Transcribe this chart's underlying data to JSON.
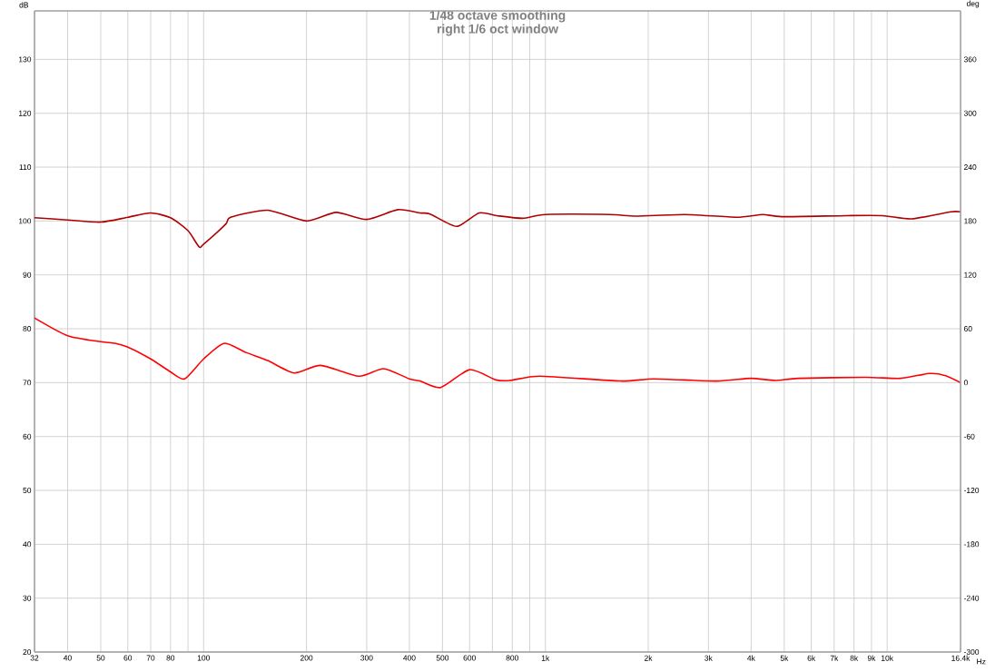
{
  "chart_data": {
    "type": "line",
    "title": "1/48 octave smoothing",
    "subtitle": "right 1/6 oct window",
    "xlabel": "Hz",
    "ylabel": "dB",
    "y2label": "deg",
    "log": "x",
    "grid": true,
    "xlim": [
      32,
      16400
    ],
    "xticks": [
      32,
      40,
      50,
      60,
      70,
      80,
      {
        "value": 90,
        "label": null
      },
      100,
      200,
      300,
      400,
      500,
      600,
      {
        "value": 700,
        "label": null
      },
      800,
      {
        "value": 900,
        "label": null
      },
      {
        "value": 1000,
        "label": "1k"
      },
      {
        "value": 2000,
        "label": "2k"
      },
      {
        "value": 3000,
        "label": "3k"
      },
      {
        "value": 4000,
        "label": "4k"
      },
      {
        "value": 5000,
        "label": "5k"
      },
      {
        "value": 6000,
        "label": "6k"
      },
      {
        "value": 7000,
        "label": "7k"
      },
      {
        "value": 8000,
        "label": "8k"
      },
      {
        "value": 9000,
        "label": "9k"
      },
      {
        "value": 10000,
        "label": "10k"
      },
      {
        "value": 16400,
        "label": "16.4k"
      }
    ],
    "ylim": [
      20,
      139
    ],
    "yticks": [
      20,
      30,
      40,
      50,
      60,
      70,
      80,
      90,
      100,
      110,
      120,
      130
    ],
    "y2lim": [
      -300,
      414
    ],
    "y2ticks": [
      -300,
      -240,
      -180,
      -120,
      -60,
      0,
      60,
      120,
      180,
      240,
      300,
      360
    ],
    "series": [
      {
        "color": "#b00000",
        "x": [
          32,
          40,
          50,
          60,
          70,
          80,
          90,
          97,
          100,
          116,
          120,
          154,
          200,
          244,
          300,
          370,
          430,
          460,
          550,
          640,
          720,
          859,
          1000,
          1545,
          1843,
          2562,
          3623,
          4326,
          4923,
          7648,
          9692,
          11800,
          15340,
          16400
        ],
        "values": [
          100.6,
          100.2,
          99.8,
          100.7,
          101.5,
          100.6,
          98.2,
          95.2,
          95.7,
          99.4,
          100.7,
          102.0,
          100.0,
          101.6,
          100.3,
          102.1,
          101.5,
          101.3,
          99.0,
          101.5,
          101.0,
          100.5,
          101.2,
          101.2,
          100.9,
          101.2,
          100.7,
          101.2,
          100.8,
          101.0,
          101.0,
          100.4,
          101.7,
          101.7
        ]
      },
      {
        "color": "#ff0000",
        "x": [
          32,
          40,
          50,
          55,
          60,
          70,
          80,
          88,
          100,
          115,
          133,
          154,
          184,
          220,
          285,
          336,
          400,
          430,
          494,
          600,
          717,
          786,
          965,
          1657,
          2078,
          3170,
          3985,
          4710,
          5500,
          8660,
          10930,
          13300,
          14840,
          16400
        ],
        "values": [
          82.0,
          78.7,
          77.6,
          77.3,
          76.6,
          74.4,
          72.0,
          70.7,
          74.4,
          77.3,
          75.6,
          74.1,
          71.8,
          73.2,
          71.2,
          72.6,
          70.7,
          70.3,
          69.1,
          72.4,
          70.5,
          70.4,
          71.2,
          70.3,
          70.7,
          70.3,
          70.8,
          70.4,
          70.8,
          71.0,
          70.8,
          71.7,
          71.3,
          70.0
        ]
      }
    ]
  }
}
